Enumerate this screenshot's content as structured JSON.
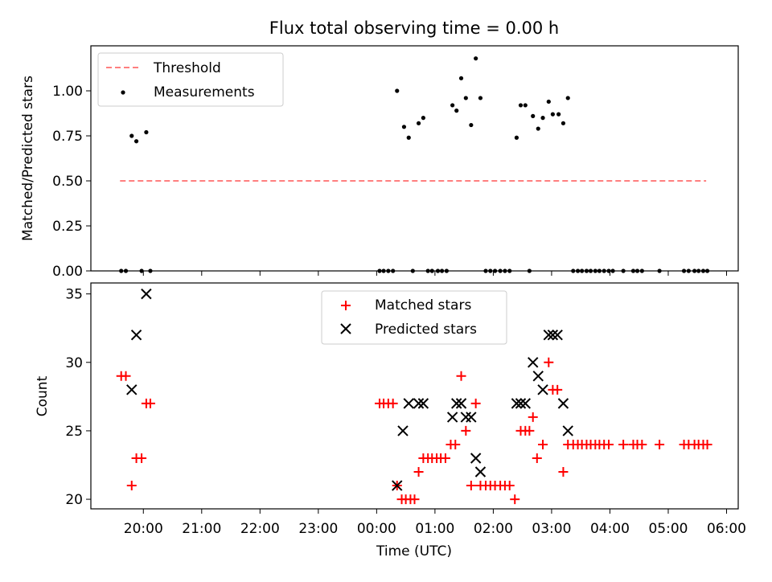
{
  "figure": {
    "title": "Flux total observing time = 0.00 h"
  },
  "colors": {
    "threshold": "#ff7f7f",
    "measurement": "#000000",
    "matched": "#ff0000",
    "predicted": "#000000"
  },
  "chart_data": [
    {
      "type": "scatter",
      "title": "Flux total observing time = 0.00 h",
      "ylabel": "Matched/Predicted stars",
      "xlabel": "",
      "xlim_hours": [
        19.1,
        30.2
      ],
      "ylim": [
        0,
        1.25
      ],
      "yticks": [
        0,
        0.25,
        0.5,
        0.75,
        1.0
      ],
      "ytick_labels": [
        "0.00",
        "0.25",
        "0.50",
        "0.75",
        "1.00"
      ],
      "legend_position": "upper-left",
      "legend": [
        "Threshold",
        "Measurements"
      ],
      "threshold": {
        "name": "Threshold",
        "y": 0.5,
        "x_start": 19.6,
        "x_end": 29.65
      },
      "series": [
        {
          "name": "Measurements",
          "points": [
            [
              19.62,
              0
            ],
            [
              19.7,
              0
            ],
            [
              19.8,
              0.75
            ],
            [
              19.88,
              0.72
            ],
            [
              19.97,
              0
            ],
            [
              20.05,
              0.77
            ],
            [
              20.12,
              0
            ],
            [
              24.05,
              0
            ],
            [
              24.12,
              0
            ],
            [
              24.2,
              0
            ],
            [
              24.28,
              0
            ],
            [
              24.35,
              1.0
            ],
            [
              24.47,
              0.8
            ],
            [
              24.55,
              0.74
            ],
            [
              24.62,
              0
            ],
            [
              24.72,
              0.82
            ],
            [
              24.8,
              0.85
            ],
            [
              24.88,
              0
            ],
            [
              24.95,
              0
            ],
            [
              25.05,
              0
            ],
            [
              25.12,
              0
            ],
            [
              25.2,
              0
            ],
            [
              25.3,
              0.92
            ],
            [
              25.37,
              0.89
            ],
            [
              25.45,
              1.07
            ],
            [
              25.53,
              0.96
            ],
            [
              25.62,
              0.81
            ],
            [
              25.7,
              1.18
            ],
            [
              25.78,
              0.96
            ],
            [
              25.87,
              0
            ],
            [
              25.95,
              0
            ],
            [
              26.03,
              0
            ],
            [
              26.12,
              0
            ],
            [
              26.2,
              0
            ],
            [
              26.28,
              0
            ],
            [
              26.4,
              0.74
            ],
            [
              26.47,
              0.92
            ],
            [
              26.55,
              0.92
            ],
            [
              26.62,
              0
            ],
            [
              26.68,
              0.86
            ],
            [
              26.77,
              0.79
            ],
            [
              26.85,
              0.85
            ],
            [
              26.95,
              0.94
            ],
            [
              27.02,
              0.87
            ],
            [
              27.12,
              0.87
            ],
            [
              27.2,
              0.82
            ],
            [
              27.28,
              0.96
            ],
            [
              27.37,
              0
            ],
            [
              27.45,
              0
            ],
            [
              27.52,
              0
            ],
            [
              27.6,
              0
            ],
            [
              27.67,
              0
            ],
            [
              27.75,
              0
            ],
            [
              27.82,
              0
            ],
            [
              27.9,
              0
            ],
            [
              27.98,
              0
            ],
            [
              28.05,
              0
            ],
            [
              28.23,
              0
            ],
            [
              28.4,
              0
            ],
            [
              28.47,
              0
            ],
            [
              28.55,
              0
            ],
            [
              28.85,
              0
            ],
            [
              29.27,
              0
            ],
            [
              29.35,
              0
            ],
            [
              29.45,
              0
            ],
            [
              29.52,
              0
            ],
            [
              29.6,
              0
            ],
            [
              29.67,
              0
            ]
          ]
        }
      ]
    },
    {
      "type": "scatter",
      "title": "",
      "ylabel": "Count",
      "xlabel": "Time (UTC)",
      "xlim_hours": [
        19.1,
        30.2
      ],
      "ylim": [
        19.3,
        35.8
      ],
      "yticks": [
        20,
        25,
        30,
        35
      ],
      "ytick_labels": [
        "20",
        "25",
        "30",
        "35"
      ],
      "xticks_hours": [
        20,
        21,
        22,
        23,
        24,
        25,
        26,
        27,
        28,
        29,
        30
      ],
      "xtick_labels": [
        "20:00",
        "21:00",
        "22:00",
        "23:00",
        "00:00",
        "01:00",
        "02:00",
        "03:00",
        "04:00",
        "05:00",
        "06:00"
      ],
      "legend_position": "upper-center",
      "legend": [
        "Matched stars",
        "Predicted stars"
      ],
      "series": [
        {
          "name": "Matched stars",
          "marker": "plus",
          "points": [
            [
              19.62,
              29
            ],
            [
              19.7,
              29
            ],
            [
              19.8,
              21
            ],
            [
              19.88,
              23
            ],
            [
              19.97,
              23
            ],
            [
              20.05,
              27
            ],
            [
              20.12,
              27
            ],
            [
              24.05,
              27
            ],
            [
              24.12,
              27
            ],
            [
              24.2,
              27
            ],
            [
              24.28,
              27
            ],
            [
              24.35,
              21
            ],
            [
              24.43,
              20
            ],
            [
              24.5,
              20
            ],
            [
              24.58,
              20
            ],
            [
              24.65,
              20
            ],
            [
              24.72,
              22
            ],
            [
              24.8,
              23
            ],
            [
              24.88,
              23
            ],
            [
              24.95,
              23
            ],
            [
              25.03,
              23
            ],
            [
              25.1,
              23
            ],
            [
              25.18,
              23
            ],
            [
              25.27,
              24
            ],
            [
              25.35,
              24
            ],
            [
              25.45,
              29
            ],
            [
              25.53,
              25
            ],
            [
              25.62,
              21
            ],
            [
              25.7,
              27
            ],
            [
              25.78,
              21
            ],
            [
              25.87,
              21
            ],
            [
              25.95,
              21
            ],
            [
              26.03,
              21
            ],
            [
              26.12,
              21
            ],
            [
              26.2,
              21
            ],
            [
              26.28,
              21
            ],
            [
              26.37,
              20
            ],
            [
              26.47,
              25
            ],
            [
              26.55,
              25
            ],
            [
              26.62,
              25
            ],
            [
              26.68,
              26
            ],
            [
              26.75,
              23
            ],
            [
              26.85,
              24
            ],
            [
              26.95,
              30
            ],
            [
              27.02,
              28
            ],
            [
              27.1,
              28
            ],
            [
              27.2,
              22
            ],
            [
              27.28,
              24
            ],
            [
              27.37,
              24
            ],
            [
              27.45,
              24
            ],
            [
              27.52,
              24
            ],
            [
              27.6,
              24
            ],
            [
              27.67,
              24
            ],
            [
              27.75,
              24
            ],
            [
              27.82,
              24
            ],
            [
              27.9,
              24
            ],
            [
              27.98,
              24
            ],
            [
              28.23,
              24
            ],
            [
              28.4,
              24
            ],
            [
              28.47,
              24
            ],
            [
              28.55,
              24
            ],
            [
              28.85,
              24
            ],
            [
              29.27,
              24
            ],
            [
              29.35,
              24
            ],
            [
              29.45,
              24
            ],
            [
              29.52,
              24
            ],
            [
              29.6,
              24
            ],
            [
              29.67,
              24
            ]
          ]
        },
        {
          "name": "Predicted stars",
          "marker": "x",
          "points": [
            [
              19.8,
              28
            ],
            [
              19.88,
              32
            ],
            [
              20.05,
              35
            ],
            [
              24.35,
              21
            ],
            [
              24.45,
              25
            ],
            [
              24.55,
              27
            ],
            [
              24.72,
              27
            ],
            [
              24.8,
              27
            ],
            [
              25.3,
              26
            ],
            [
              25.37,
              27
            ],
            [
              25.45,
              27
            ],
            [
              25.53,
              26
            ],
            [
              25.62,
              26
            ],
            [
              25.7,
              23
            ],
            [
              25.78,
              22
            ],
            [
              26.4,
              27
            ],
            [
              26.47,
              27
            ],
            [
              26.55,
              27
            ],
            [
              26.68,
              30
            ],
            [
              26.77,
              29
            ],
            [
              26.85,
              28
            ],
            [
              26.95,
              32
            ],
            [
              27.02,
              32
            ],
            [
              27.1,
              32
            ],
            [
              27.2,
              27
            ],
            [
              27.28,
              25
            ]
          ]
        }
      ]
    }
  ]
}
